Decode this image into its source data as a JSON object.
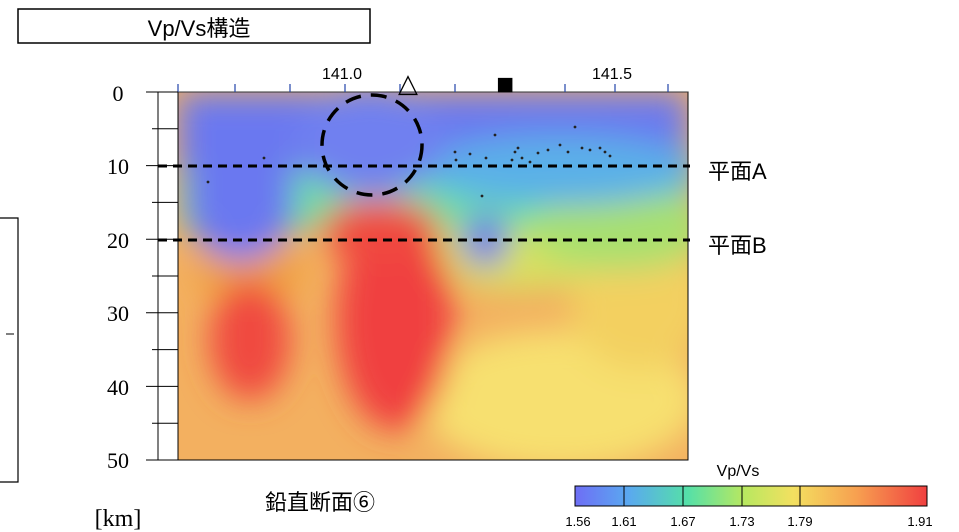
{
  "title": "Vp/Vs構造",
  "top_axis": {
    "ticks": [
      "141.0",
      "141.5"
    ]
  },
  "markers": {
    "volcano_symbol": "△",
    "station_symbol": "■"
  },
  "depth_axis": {
    "labels": [
      "0",
      "10",
      "20",
      "30",
      "40",
      "50"
    ],
    "unit": "[km]"
  },
  "planes": [
    {
      "label": "平面A",
      "depth_km": 10
    },
    {
      "label": "平面B",
      "depth_km": 20
    }
  ],
  "caption": "鉛直断面⑥",
  "colorbar": {
    "title": "Vp/Vs",
    "tick_labels": [
      "1.56",
      "1.61",
      "1.67",
      "1.73",
      "1.79",
      "1.91"
    ],
    "colors": [
      "#6e6ef5",
      "#5aa8f0",
      "#55e0a8",
      "#b8e860",
      "#f3e060",
      "#f7a050",
      "#f04040"
    ]
  }
}
